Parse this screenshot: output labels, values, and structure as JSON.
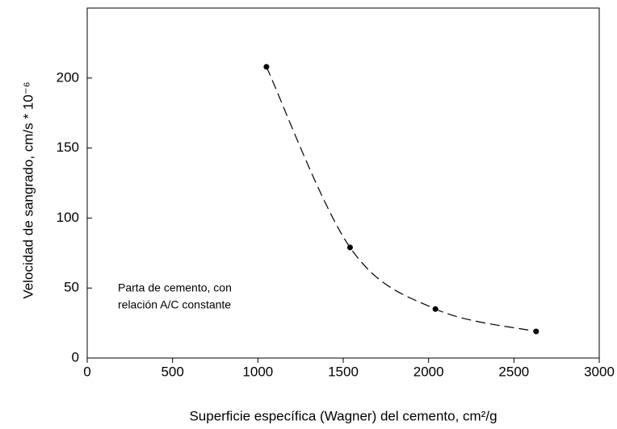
{
  "chart_data": {
    "type": "scatter",
    "x_label": "Superficie específica (Wagner) del cemento, cm²/g",
    "y_label": "Velocidad de sangrado, cm/s * 10⁻⁶",
    "annotation": [
      "Parta de cemento, con",
      "relación A/C constante"
    ],
    "series": [
      {
        "x": [
          1050,
          1540,
          2040,
          2630
        ],
        "values": [
          208,
          79,
          35,
          19
        ],
        "color": "#000000"
      }
    ],
    "xlim": [
      0,
      3000
    ],
    "xticks": [
      0,
      500,
      1000,
      1500,
      2000,
      2500,
      3000
    ],
    "ylim": [
      0,
      250
    ],
    "yticks": [
      0,
      50,
      100,
      150,
      200
    ],
    "grid": false,
    "curve": "dashed"
  }
}
